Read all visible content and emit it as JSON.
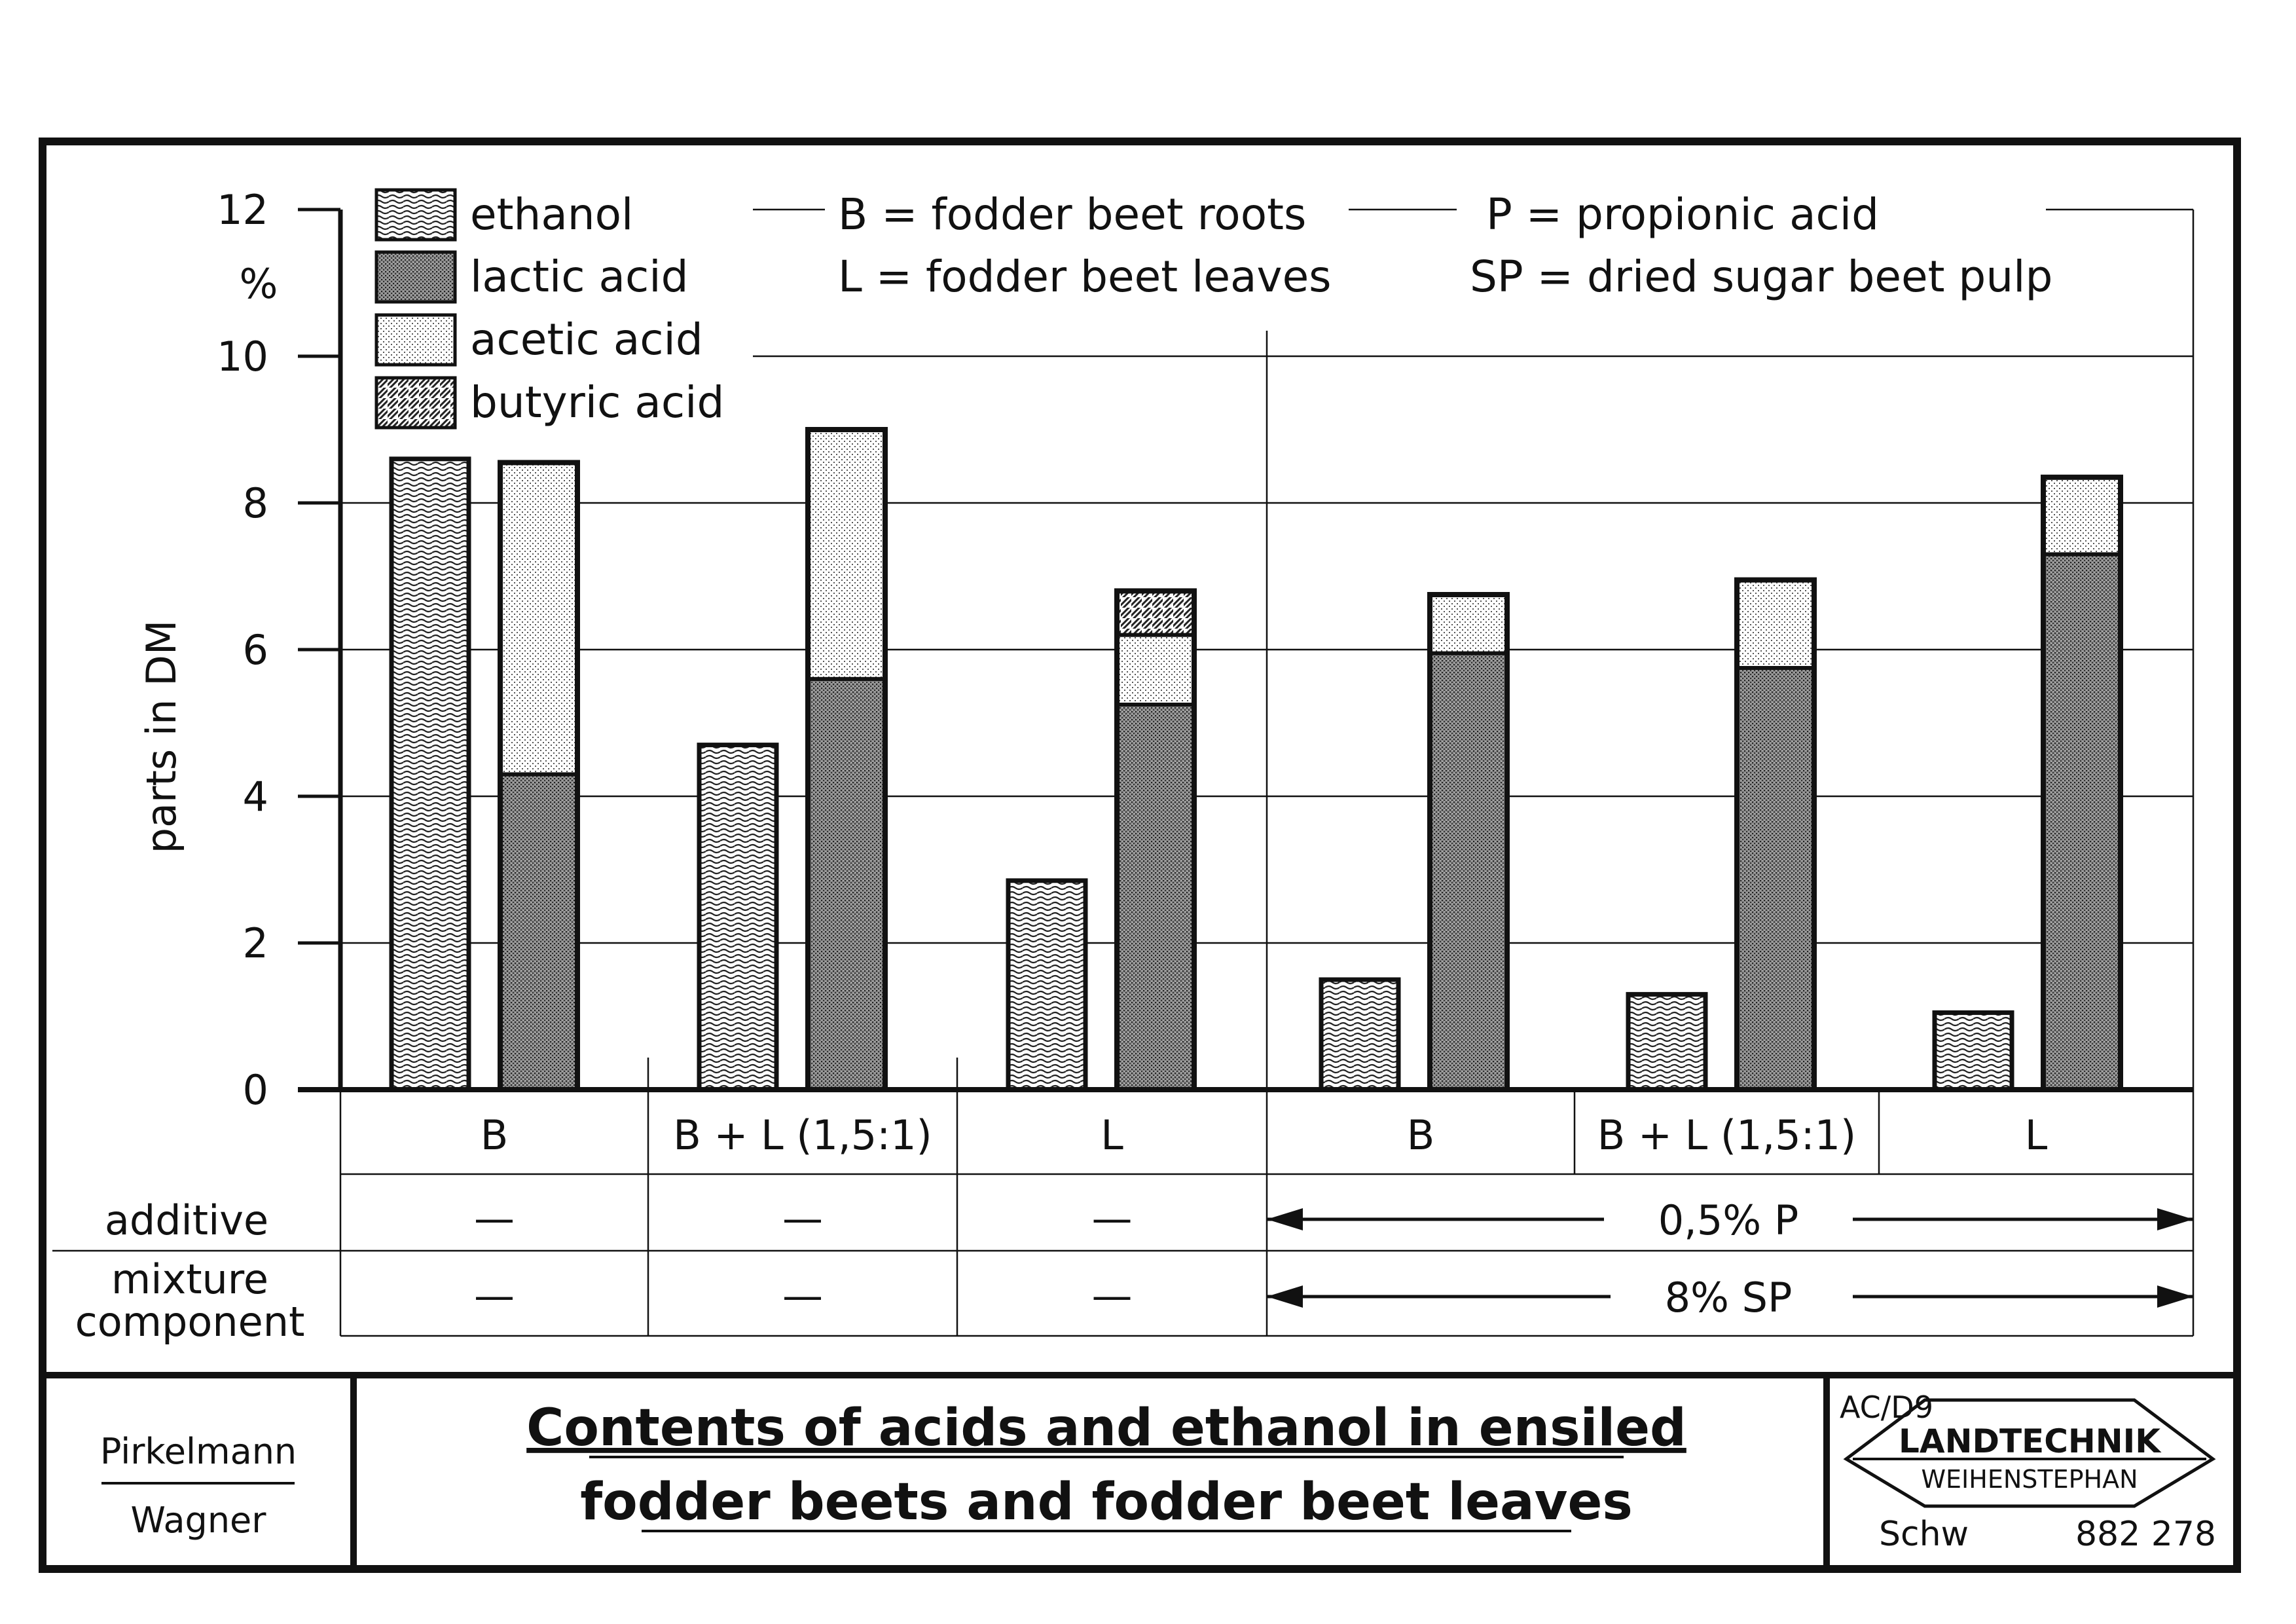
{
  "chart_data": {
    "type": "bar",
    "subtype": "stacked-grouped",
    "title": "Contents of acids and ethanol in ensiled fodder beets and fodder beet leaves",
    "unit": "%",
    "ylabel": "parts in DM",
    "ylim": [
      0,
      12
    ],
    "yticks": [
      0,
      2,
      4,
      6,
      8,
      10,
      12
    ],
    "grid": true,
    "legend": [
      {
        "key": "ethanol",
        "label": "ethanol"
      },
      {
        "key": "lactic",
        "label": "lactic acid"
      },
      {
        "key": "acetic",
        "label": "acetic acid"
      },
      {
        "key": "butyric",
        "label": "butyric acid"
      }
    ],
    "abbreviations": [
      {
        "abbr": "B",
        "text": "B = fodder beet roots"
      },
      {
        "abbr": "L",
        "text": "L = fodder beet leaves"
      },
      {
        "abbr": "P",
        "text": "P = propionic acid"
      },
      {
        "abbr": "SP",
        "text": "SP = dried sugar beet pulp"
      }
    ],
    "row_labels": {
      "additive": "additive",
      "mixture_line1": "mixture",
      "mixture_line2": "component"
    },
    "groups": [
      {
        "label": "B",
        "additive": "—",
        "mixture": "—",
        "ethanol": 8.6,
        "lactic": 4.3,
        "acetic": 4.25,
        "butyric": 0
      },
      {
        "label": "B + L (1,5:1)",
        "additive": "—",
        "mixture": "—",
        "ethanol": 4.7,
        "lactic": 5.6,
        "acetic": 3.4,
        "butyric": 0
      },
      {
        "label": "L",
        "additive": "—",
        "mixture": "—",
        "ethanol": 2.85,
        "lactic": 5.25,
        "acetic": 0.95,
        "butyric": 0.6
      },
      {
        "label": "B",
        "ethanol": 1.5,
        "lactic": 5.95,
        "acetic": 0.8,
        "butyric": 0
      },
      {
        "label": "B + L (1,5:1)",
        "ethanol": 1.3,
        "lactic": 5.75,
        "acetic": 1.2,
        "butyric": 0
      },
      {
        "label": "L",
        "ethanol": 1.05,
        "lactic": 7.3,
        "acetic": 1.05,
        "butyric": 0
      }
    ],
    "treated_additive": "0,5% P",
    "treated_mixture": "8% SP"
  },
  "footer": {
    "author1": "Pirkelmann",
    "author2": "Wagner",
    "title_line1": "Contents of acids and ethanol in ensiled",
    "title_line2": "fodder beets and fodder beet leaves",
    "code": "AC/D9",
    "logo_line1": "LANDTECHNIK",
    "logo_line2": "WEIHENSTEPHAN",
    "sign": "Schw",
    "number": "882 278"
  }
}
